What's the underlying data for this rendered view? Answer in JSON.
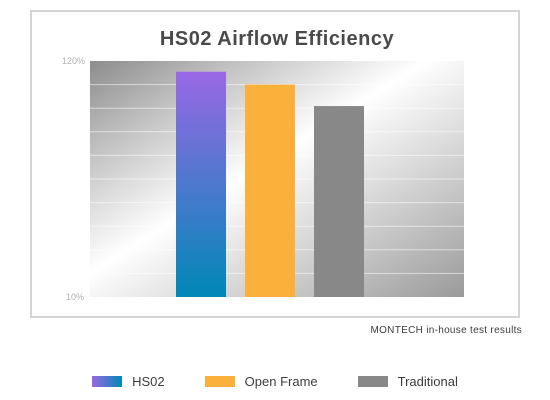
{
  "chart_data": {
    "type": "bar",
    "title": "HS02 Airflow Efficiency",
    "categories": [
      "HS02",
      "Open Frame",
      "Traditional"
    ],
    "values": [
      115,
      109,
      99
    ],
    "ylim": [
      10,
      120
    ],
    "yticks": [
      "120%",
      "10%"
    ],
    "grid": true,
    "legend": "bottom",
    "series_colors": [
      {
        "top": "#9a68e4",
        "bottom": "#0088b7"
      },
      {
        "top": "#fbb03b",
        "bottom": "#fbb03b"
      },
      {
        "top": "#888888",
        "bottom": "#888888"
      }
    ]
  },
  "footnote": "MONTECH in-house test results",
  "legend_items": [
    {
      "label": "HS02"
    },
    {
      "label": "Open Frame"
    },
    {
      "label": "Traditional"
    }
  ]
}
